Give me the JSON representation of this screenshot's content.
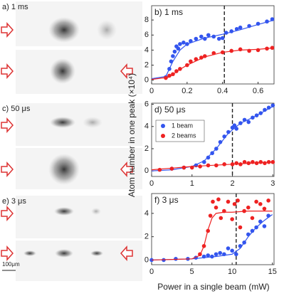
{
  "images": {
    "labels": [
      "a) 1 ms",
      "c) 50 μs",
      "e) 3 μs"
    ],
    "scale_bar": "100μm"
  },
  "y_label": "Atom number in one peak (×10⁴)",
  "x_label": "Power in a single beam (mW)",
  "chart_data": [
    {
      "type": "scatter",
      "title": "b) 1 ms",
      "xlim": [
        0,
        0.69
      ],
      "ylim": [
        -0.5,
        9.9
      ],
      "xticks": [
        0,
        0.2,
        0.4,
        0.6
      ],
      "yticks": [
        0,
        2,
        4,
        6,
        8
      ],
      "marker": 0.41,
      "series": [
        {
          "name": "1 beam",
          "color": "#3355ee",
          "x": [
            0.08,
            0.1,
            0.11,
            0.12,
            0.13,
            0.14,
            0.15,
            0.16,
            0.18,
            0.2,
            0.22,
            0.25,
            0.28,
            0.3,
            0.32,
            0.35,
            0.38,
            0.4,
            0.42,
            0.45,
            0.48,
            0.5,
            0.55,
            0.6,
            0.65,
            0.68
          ],
          "values": [
            0.4,
            1.5,
            2.5,
            3.2,
            3.8,
            4.5,
            4.2,
            4.8,
            5,
            4.8,
            5.2,
            5.5,
            5.8,
            5.5,
            6,
            5.8,
            5.5,
            5.6,
            6.3,
            6.5,
            6.8,
            7,
            7.2,
            7.5,
            7.8,
            8.1
          ],
          "fit_x": [
            0,
            0.08,
            0.12,
            0.16,
            0.2,
            0.3,
            0.4,
            0.5,
            0.6,
            0.69
          ],
          "fit_values": [
            0.2,
            0.5,
            2.5,
            4,
            4.8,
            5.6,
            6.1,
            6.7,
            7.4,
            8
          ]
        },
        {
          "name": "2 beams",
          "color": "#ee2222",
          "x": [
            0.08,
            0.1,
            0.12,
            0.14,
            0.16,
            0.2,
            0.22,
            0.25,
            0.28,
            0.3,
            0.35,
            0.4,
            0.45,
            0.5,
            0.55,
            0.6,
            0.65,
            0.68
          ],
          "values": [
            0.3,
            0.6,
            0.8,
            1.2,
            1.5,
            2,
            2.5,
            2.8,
            3,
            3.2,
            3.6,
            3.7,
            3.9,
            4.1,
            3.9,
            4,
            4.2,
            4.3
          ],
          "fit_x": [
            0,
            0.1,
            0.15,
            0.2,
            0.3,
            0.4,
            0.5,
            0.6,
            0.69
          ],
          "fit_values": [
            0.1,
            0.4,
            1.3,
            2,
            3.1,
            3.7,
            4,
            4.1,
            4.3
          ]
        }
      ]
    },
    {
      "type": "scatter",
      "title": "d) 50 μs",
      "xlim": [
        0,
        3.03
      ],
      "ylim": [
        -0.5,
        6.1
      ],
      "xticks": [
        0,
        1,
        2,
        3
      ],
      "yticks": [
        0,
        2,
        4,
        6
      ],
      "marker": 2,
      "legend": "upper-left",
      "series": [
        {
          "name": "1 beam",
          "color": "#3355ee",
          "x": [
            0.5,
            0.8,
            1.1,
            1.3,
            1.4,
            1.5,
            1.6,
            1.7,
            1.8,
            1.9,
            2,
            2.05,
            2.1,
            2.2,
            2.3,
            2.4,
            2.5,
            2.6,
            2.7,
            2.8,
            2.9,
            3
          ],
          "values": [
            0.2,
            0.3,
            0.5,
            0.8,
            1.2,
            1.6,
            2,
            2.6,
            3.1,
            3.5,
            3.9,
            4.1,
            3.8,
            4.3,
            4.6,
            4.4,
            4.8,
            5,
            5.2,
            5.5,
            5.7,
            5.9
          ],
          "fit_x": [
            0,
            0.5,
            1,
            1.3,
            1.6,
            1.9,
            2.2,
            2.5,
            2.8,
            3
          ],
          "fit_values": [
            0,
            0.1,
            0.4,
            0.9,
            2,
            3.4,
            4.3,
            4.8,
            5.4,
            5.8
          ]
        },
        {
          "name": "2 beams",
          "color": "#ee2222",
          "x": [
            0.2,
            0.5,
            0.8,
            1,
            1.2,
            1.4,
            1.6,
            1.8,
            2,
            2.1,
            2.2,
            2.3,
            2.4,
            2.5,
            2.6,
            2.7,
            2.8,
            2.9,
            3
          ],
          "values": [
            0.1,
            0.2,
            0.3,
            0.3,
            0.4,
            0.5,
            0.5,
            0.6,
            0.6,
            0.7,
            0.6,
            0.8,
            0.7,
            0.8,
            0.7,
            0.8,
            0.7,
            0.8,
            0.8
          ],
          "fit_x": [
            0,
            1,
            2,
            3
          ],
          "fit_values": [
            0.1,
            0.4,
            0.6,
            0.8
          ]
        }
      ]
    },
    {
      "type": "scatter",
      "title": "f) 3 μs",
      "xlim": [
        0,
        15.2
      ],
      "ylim": [
        -0.4,
        5.7
      ],
      "xticks": [
        0,
        5,
        10,
        15
      ],
      "yticks": [
        0,
        2,
        4
      ],
      "marker": 10.5,
      "series": [
        {
          "name": "1 beam",
          "color": "#3355ee",
          "x": [
            0,
            1.5,
            3,
            4.5,
            5.5,
            6.5,
            7,
            7.5,
            8,
            8.5,
            9,
            9.5,
            10,
            10.5,
            11,
            11.5,
            12,
            12.5,
            13,
            13.5,
            14,
            14.5
          ],
          "values": [
            0,
            0,
            0.1,
            0.1,
            0.2,
            0.3,
            0.4,
            0.3,
            0.5,
            0.6,
            0.5,
            1,
            0.8,
            0.5,
            1.2,
            1.5,
            2.2,
            2.5,
            2.8,
            3.3,
            2.9,
            3.8
          ],
          "fit_x": [
            0,
            5,
            8,
            10,
            11,
            12,
            13,
            14,
            15
          ],
          "fit_values": [
            0,
            0.1,
            0.3,
            0.5,
            1,
            2,
            2.8,
            3.4,
            3.9
          ]
        },
        {
          "name": "2 beams",
          "color": "#ee2222",
          "x": [
            6,
            6.5,
            7,
            7.3,
            7.6,
            8,
            8.3,
            8.6,
            9,
            9.5,
            10,
            10.3,
            10.7,
            11,
            11.5,
            12,
            12.5,
            13,
            13.5,
            14,
            14.5
          ],
          "values": [
            0.5,
            1.2,
            2.5,
            3.8,
            5,
            4.5,
            5.2,
            3.6,
            4.2,
            5,
            3.5,
            4.8,
            5.1,
            2.8,
            4.2,
            4.5,
            3.6,
            5,
            4.8,
            4.4,
            5.1
          ],
          "fit_x": [
            0,
            5,
            6,
            6.5,
            7,
            7.5,
            8,
            9,
            10,
            12,
            15
          ],
          "fit_values": [
            0,
            0.1,
            0.4,
            1.2,
            2.6,
            3.6,
            4,
            4.1,
            4.1,
            4.2,
            4.2
          ]
        }
      ]
    }
  ]
}
